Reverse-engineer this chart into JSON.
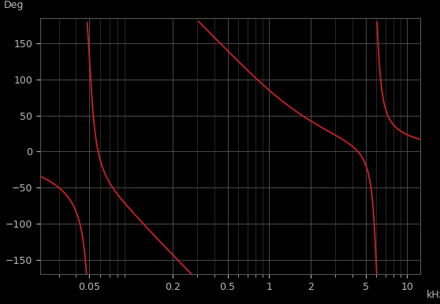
{
  "background_color": "#000000",
  "line_color": "#cc2222",
  "line_width": 1.3,
  "ylabel": "Deg",
  "xlabel": "kHz",
  "ylim": [
    -170,
    185
  ],
  "yticks": [
    -150,
    -100,
    -50,
    0,
    50,
    100,
    150
  ],
  "xlim_log": [
    0.022,
    12.5
  ],
  "xtick_positions": [
    0.05,
    0.2,
    0.5,
    1,
    2,
    5,
    10
  ],
  "xtick_labels": [
    "0.05",
    "0.2",
    "0.5",
    "1",
    "2",
    "5",
    "10"
  ],
  "grid_major_color": "#555555",
  "grid_minor_color": "#444444",
  "tick_color": "#bbbbbb",
  "text_color": "#bbbbbb"
}
